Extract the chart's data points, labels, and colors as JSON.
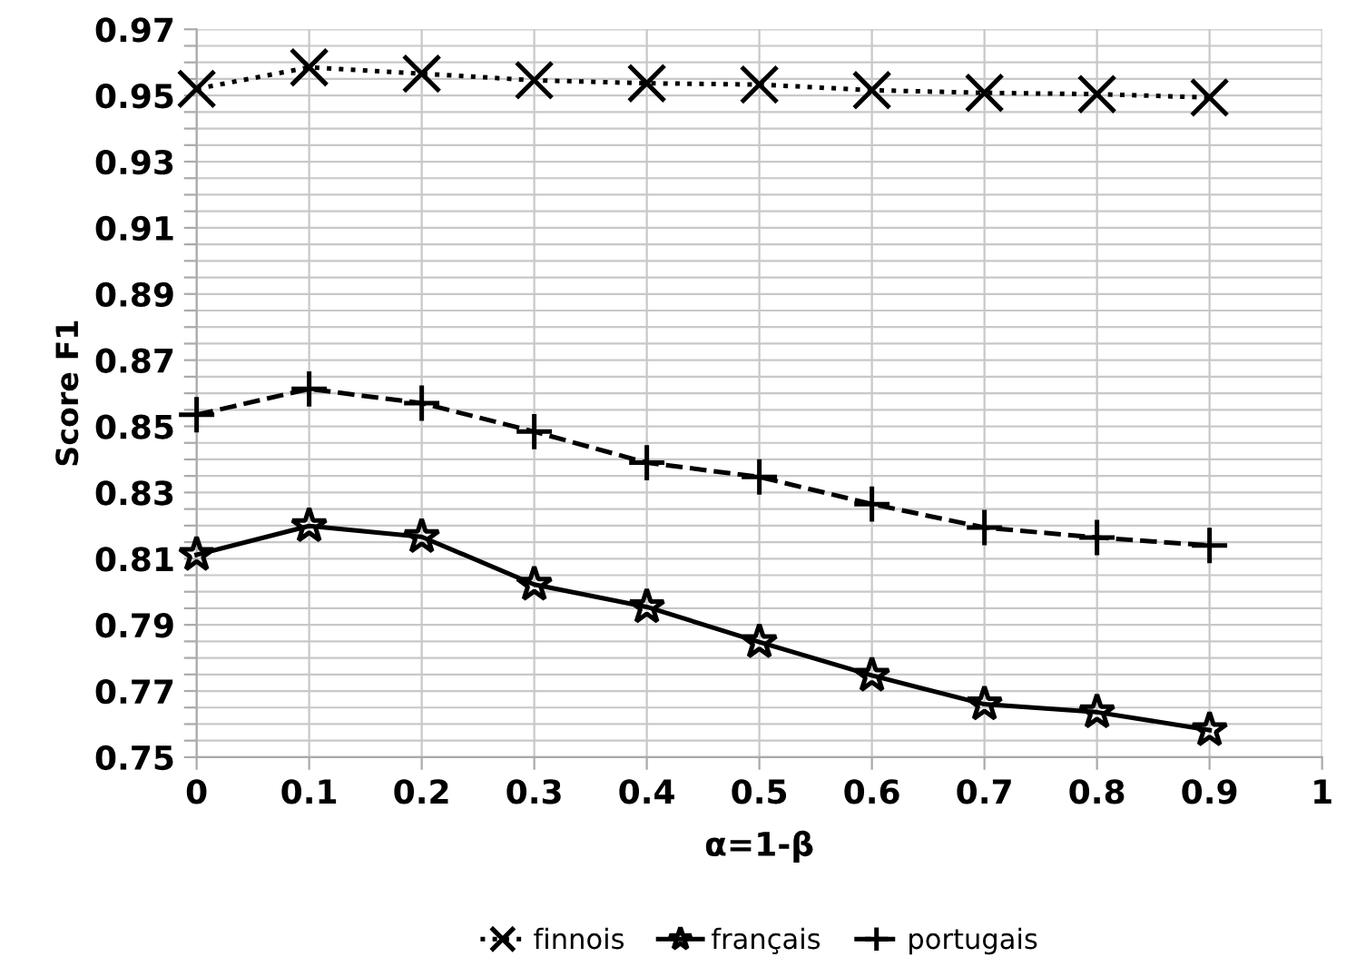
{
  "chart_data": {
    "type": "line",
    "xlabel": "α=1-β",
    "ylabel": "Score F1",
    "x": [
      0,
      0.1,
      0.2,
      0.3,
      0.4,
      0.5,
      0.6,
      0.7,
      0.8,
      0.9
    ],
    "series": [
      {
        "name": "finnois",
        "color": "#000000",
        "marker": "cross",
        "line_style": "dotted",
        "values": [
          0.952,
          0.9585,
          0.9566,
          0.9546,
          0.9537,
          0.9533,
          0.9516,
          0.9508,
          0.9504,
          0.9494
        ]
      },
      {
        "name": "français",
        "color": "#000000",
        "marker": "star",
        "line_style": "solid",
        "values": [
          0.8112,
          0.8199,
          0.8166,
          0.8022,
          0.7954,
          0.7848,
          0.7747,
          0.766,
          0.7636,
          0.7582
        ]
      },
      {
        "name": "portugais",
        "color": "#000000",
        "marker": "plus",
        "line_style": "dashed",
        "values": [
          0.8535,
          0.8613,
          0.857,
          0.8484,
          0.839,
          0.8347,
          0.8265,
          0.8194,
          0.8164,
          0.814
        ]
      }
    ],
    "xlim": [
      0,
      1
    ],
    "xticks": [
      0,
      0.1,
      0.2,
      0.3,
      0.4,
      0.5,
      0.6,
      0.7,
      0.8,
      0.9,
      1
    ],
    "ylim": [
      0.75,
      0.97
    ],
    "yticks": [
      0.75,
      {
        "value": 0.755,
        "label": null
      },
      {
        "value": 0.76,
        "label": null
      },
      {
        "value": 0.765,
        "label": null
      },
      0.77,
      {
        "value": 0.775,
        "label": null
      },
      {
        "value": 0.78,
        "label": null
      },
      {
        "value": 0.785,
        "label": null
      },
      0.79,
      {
        "value": 0.795,
        "label": null
      },
      {
        "value": 0.8,
        "label": null
      },
      {
        "value": 0.805,
        "label": null
      },
      0.81,
      {
        "value": 0.815,
        "label": null
      },
      {
        "value": 0.82,
        "label": null
      },
      {
        "value": 0.825,
        "label": null
      },
      0.83,
      {
        "value": 0.835,
        "label": null
      },
      {
        "value": 0.84,
        "label": null
      },
      {
        "value": 0.845,
        "label": null
      },
      0.85,
      {
        "value": 0.855,
        "label": null
      },
      {
        "value": 0.86,
        "label": null
      },
      {
        "value": 0.865,
        "label": null
      },
      0.87,
      {
        "value": 0.875,
        "label": null
      },
      {
        "value": 0.88,
        "label": null
      },
      {
        "value": 0.885,
        "label": null
      },
      0.89,
      {
        "value": 0.895,
        "label": null
      },
      {
        "value": 0.9,
        "label": null
      },
      {
        "value": 0.905,
        "label": null
      },
      0.91,
      {
        "value": 0.915,
        "label": null
      },
      {
        "value": 0.92,
        "label": null
      },
      {
        "value": 0.925,
        "label": null
      },
      0.93,
      {
        "value": 0.935,
        "label": null
      },
      {
        "value": 0.94,
        "label": null
      },
      {
        "value": 0.945,
        "label": null
      },
      0.95,
      {
        "value": 0.955,
        "label": null
      },
      {
        "value": 0.96,
        "label": null
      },
      {
        "value": 0.965,
        "label": null
      },
      0.97
    ],
    "grid": true,
    "legend": "bottom"
  }
}
